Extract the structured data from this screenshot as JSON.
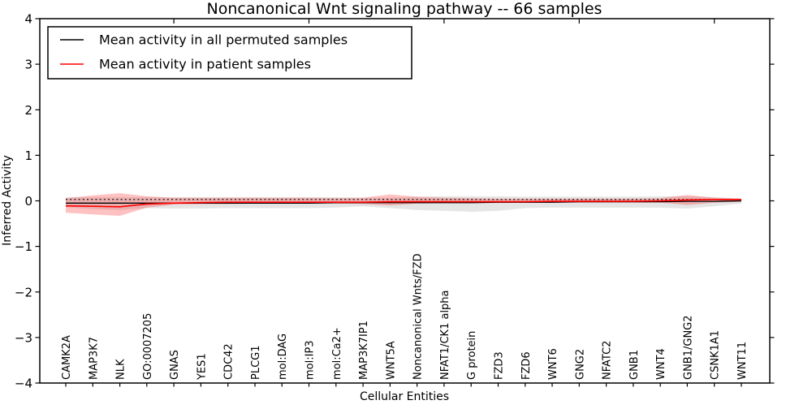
{
  "chart_data": {
    "type": "line",
    "title": "Noncanonical Wnt signaling pathway -- 66 samples",
    "xlabel": "Cellular Entities",
    "ylabel": "Inferred Activity",
    "ylim": [
      -4,
      4
    ],
    "yticks": [
      -4,
      -3,
      -2,
      -1,
      0,
      1,
      2,
      3,
      4
    ],
    "grid": false,
    "legend_position": "upper left",
    "x_tick_label_rotation": 90,
    "top_axis_ticks": [
      5,
      10,
      15,
      20,
      25
    ],
    "categories": [
      "CAMK2A",
      "MAP3K7",
      "NLK",
      "GO:0007205",
      "GNAS",
      "YES1",
      "CDC42",
      "PLCG1",
      "mol:DAG",
      "mol:IP3",
      "mol:Ca2+",
      "MAP3K7IP1",
      "WNT5A",
      "Noncanonical Wnts/FZD",
      "NFAT1/CK1 alpha",
      "G protein",
      "FZD3",
      "FZD6",
      "WNT6",
      "GNG2",
      "NFATC2",
      "GNB1",
      "WNT4",
      "GNB1/GNG2",
      "CSNK1A1",
      "WNT11"
    ],
    "series": [
      {
        "name": "Permuted samples spread",
        "kind": "band",
        "color": "rgba(0,0,0,0.10)",
        "upper": [
          0.08,
          0.08,
          0.08,
          0.08,
          0.08,
          0.08,
          0.08,
          0.08,
          0.08,
          0.08,
          0.08,
          0.07,
          0.07,
          0.09,
          0.1,
          0.1,
          0.1,
          0.09,
          0.09,
          0.09,
          0.09,
          0.09,
          0.1,
          0.1,
          0.08,
          0.05
        ],
        "lower": [
          -0.14,
          -0.18,
          -0.2,
          -0.16,
          -0.17,
          -0.17,
          -0.16,
          -0.16,
          -0.16,
          -0.16,
          -0.15,
          -0.12,
          -0.16,
          -0.2,
          -0.22,
          -0.24,
          -0.22,
          -0.16,
          -0.15,
          -0.15,
          -0.15,
          -0.15,
          -0.15,
          -0.17,
          -0.12,
          -0.06
        ]
      },
      {
        "name": "Patient samples spread",
        "kind": "band",
        "color": "rgba(255,0,0,0.24)",
        "upper": [
          0.06,
          0.12,
          0.17,
          0.1,
          0.07,
          0.07,
          0.07,
          0.07,
          0.07,
          0.07,
          0.06,
          0.07,
          0.14,
          0.09,
          0.07,
          0.06,
          0.05,
          0.05,
          0.05,
          0.05,
          0.05,
          0.05,
          0.06,
          0.13,
          0.07,
          0.05
        ],
        "lower": [
          -0.26,
          -0.3,
          -0.33,
          -0.15,
          -0.08,
          -0.07,
          -0.07,
          -0.06,
          -0.06,
          -0.06,
          -0.06,
          -0.07,
          -0.1,
          -0.06,
          -0.05,
          -0.05,
          -0.05,
          -0.04,
          -0.04,
          -0.04,
          -0.04,
          -0.04,
          -0.04,
          -0.09,
          -0.04,
          -0.02
        ]
      },
      {
        "name": "Zero baseline",
        "kind": "line",
        "style": "dotted",
        "color": "#000000",
        "values": [
          0.03,
          0.03,
          0.03,
          0.03,
          0.03,
          0.03,
          0.03,
          0.03,
          0.03,
          0.03,
          0.03,
          0.03,
          0.03,
          0.03,
          0.03,
          0.03,
          0.03,
          0.03,
          0.03,
          0.03,
          0.03,
          0.03,
          0.03,
          0.03,
          0.03,
          0.03
        ]
      },
      {
        "name": "Mean activity in all permuted samples",
        "kind": "line",
        "style": "solid",
        "color": "#000000",
        "values": [
          -0.05,
          -0.05,
          -0.05,
          -0.05,
          -0.05,
          -0.05,
          -0.05,
          -0.05,
          -0.05,
          -0.05,
          -0.04,
          -0.04,
          -0.04,
          -0.04,
          -0.04,
          -0.04,
          -0.03,
          -0.03,
          -0.03,
          -0.02,
          -0.02,
          -0.02,
          -0.02,
          -0.01,
          -0.01,
          0.0
        ],
        "line_width": 1.3
      },
      {
        "name": "Mean activity in patient samples",
        "kind": "line",
        "style": "solid",
        "color": "#ff0000",
        "values": [
          -0.11,
          -0.12,
          -0.13,
          -0.07,
          -0.05,
          -0.04,
          -0.03,
          -0.03,
          -0.03,
          -0.03,
          -0.03,
          -0.03,
          -0.02,
          -0.02,
          -0.02,
          -0.02,
          -0.02,
          -0.02,
          -0.01,
          -0.01,
          -0.01,
          -0.01,
          0.0,
          0.02,
          0.03,
          0.03
        ],
        "line_width": 1.6
      }
    ]
  },
  "legend": {
    "entries": [
      {
        "label": "Mean activity in all permuted samples",
        "color": "#000000"
      },
      {
        "label": "Mean activity in patient samples",
        "color": "#ff0000"
      }
    ]
  }
}
